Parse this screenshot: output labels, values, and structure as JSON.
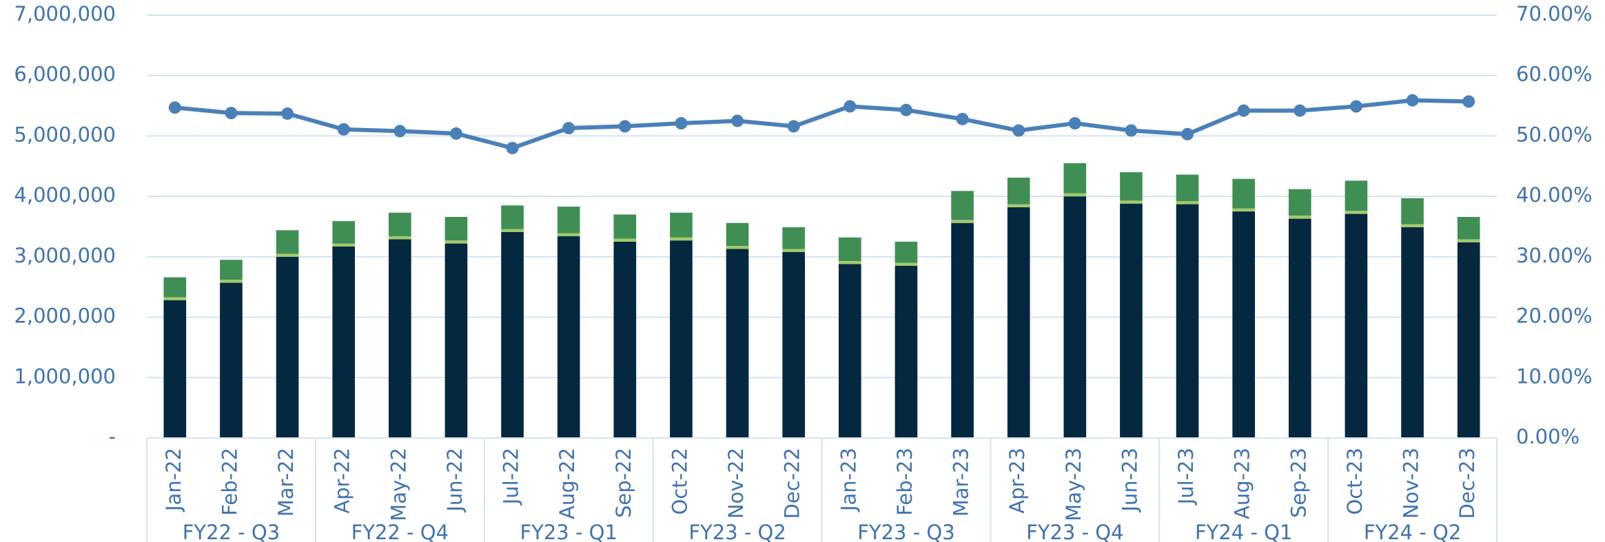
{
  "chart_data": {
    "type": "bar-line",
    "categories": [
      "Jan-22",
      "Feb-22",
      "Mar-22",
      "Apr-22",
      "May-22",
      "Jun-22",
      "Jul-22",
      "Aug-22",
      "Sep-22",
      "Oct-22",
      "Nov-22",
      "Dec-22",
      "Jan-23",
      "Feb-23",
      "Mar-23",
      "Apr-23",
      "May-23",
      "Jun-23",
      "Jul-23",
      "Aug-23",
      "Sep-23",
      "Oct-23",
      "Nov-23",
      "Dec-23"
    ],
    "groups": [
      "FY22 - Q3",
      "FY22 - Q4",
      "FY23 - Q1",
      "FY23 - Q2",
      "FY23 - Q3",
      "FY23 - Q4",
      "FY24 - Q1",
      "FY24 - Q2"
    ],
    "series": [
      {
        "color": "#03283f",
        "values": [
          2280000,
          2570000,
          3000000,
          3170000,
          3290000,
          3220000,
          3410000,
          3340000,
          3250000,
          3270000,
          3130000,
          3080000,
          2880000,
          2850000,
          3560000,
          3820000,
          4000000,
          3880000,
          3870000,
          3750000,
          3630000,
          3710000,
          3490000,
          3240000
        ]
      },
      {
        "color": "#a3c96b",
        "values": [
          50000,
          50000,
          50000,
          50000,
          50000,
          50000,
          50000,
          50000,
          50000,
          50000,
          50000,
          50000,
          50000,
          50000,
          50000,
          50000,
          50000,
          50000,
          50000,
          50000,
          50000,
          50000,
          50000,
          50000
        ]
      },
      {
        "color": "#3f8f55",
        "values": [
          330000,
          330000,
          390000,
          370000,
          390000,
          390000,
          390000,
          440000,
          400000,
          410000,
          380000,
          360000,
          390000,
          350000,
          480000,
          440000,
          500000,
          470000,
          440000,
          490000,
          440000,
          500000,
          430000,
          370000
        ]
      },
      {
        "color": "#4a80b8",
        "axis": "y2",
        "type": "line",
        "values": [
          54.7,
          53.8,
          53.7,
          51.1,
          50.8,
          50.4,
          48.0,
          51.3,
          51.6,
          52.1,
          52.5,
          51.6,
          54.9,
          54.3,
          52.8,
          50.9,
          52.1,
          50.9,
          50.3,
          54.2,
          54.2,
          54.9,
          55.9,
          55.7
        ]
      }
    ],
    "ylim": [
      0,
      7000000
    ],
    "yticks": [
      {
        "value": 0,
        "label": "-"
      },
      {
        "value": 1000000,
        "label": "1,000,000"
      },
      {
        "value": 2000000,
        "label": "2,000,000"
      },
      {
        "value": 3000000,
        "label": "3,000,000"
      },
      {
        "value": 4000000,
        "label": "4,000,000"
      },
      {
        "value": 5000000,
        "label": "5,000,000"
      },
      {
        "value": 6000000,
        "label": "6,000,000"
      },
      {
        "value": 7000000,
        "label": "7,000,000"
      }
    ],
    "y2lim": [
      0,
      70
    ],
    "y2ticks": [
      {
        "value": 0,
        "label": "0.00%"
      },
      {
        "value": 10,
        "label": "10.00%"
      },
      {
        "value": 20,
        "label": "20.00%"
      },
      {
        "value": 30,
        "label": "30.00%"
      },
      {
        "value": 40,
        "label": "40.00%"
      },
      {
        "value": 50,
        "label": "50.00%"
      },
      {
        "value": 60,
        "label": "60.00%"
      },
      {
        "value": 70,
        "label": "70.00%"
      }
    ],
    "grid": true
  }
}
